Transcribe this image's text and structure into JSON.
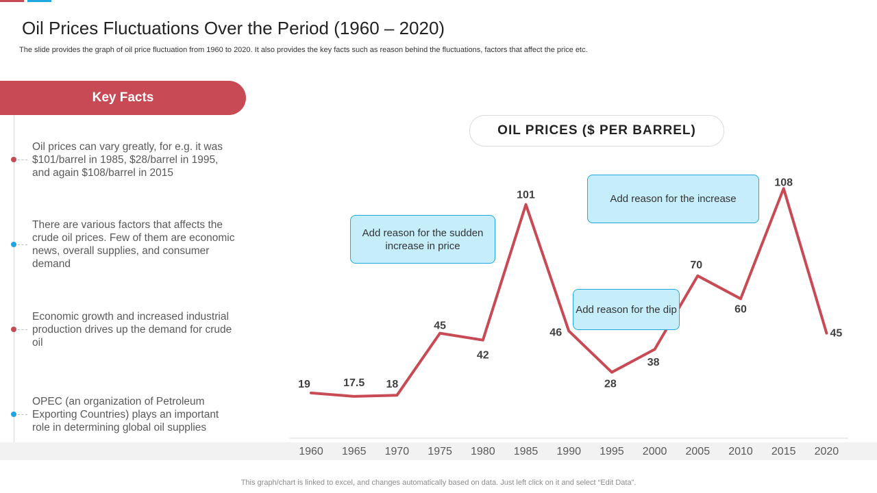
{
  "header": {
    "title": "Oil Prices Fluctuations Over the Period (1960 – 2020)",
    "subtitle": "The slide provides the graph of oil price fluctuation from 1960 to 2020. It also provides the key facts such as reason behind the fluctuations, factors that affect the price etc."
  },
  "key_facts": {
    "heading": "Key Facts",
    "items": [
      {
        "text": "Oil prices can vary greatly, for e.g. it was $101/barrel in 1985, $28/barrel in 1995, and again $108/barrel in 2015",
        "color": "#c84a55"
      },
      {
        "text": "There are various factors that affects the crude oil prices. Few of them are economic news, overall supplies, and consumer demand",
        "color": "#1ea7e1"
      },
      {
        "text": "Economic growth and increased industrial production drives up the demand for crude oil",
        "color": "#c84a55"
      },
      {
        "text": "OPEC (an organization of Petroleum Exporting Countries) plays an important role in determining global oil supplies",
        "color": "#1ea7e1"
      }
    ]
  },
  "chart_data": {
    "type": "line",
    "title": "OIL PRICES ($ PER BARREL)",
    "categories": [
      "1960",
      "1965",
      "1970",
      "1975",
      "1980",
      "1985",
      "1990",
      "1995",
      "2000",
      "2005",
      "2010",
      "2015",
      "2020"
    ],
    "series": [
      {
        "name": "Oil price",
        "values": [
          19,
          17.5,
          18,
          45,
          42,
          101,
          46,
          28,
          38,
          70,
          60,
          108,
          45
        ],
        "color": "#c84a55"
      }
    ],
    "labels": [
      "19",
      "17.5",
      "18",
      "45",
      "42",
      "101",
      "46",
      "28",
      "38",
      "70",
      "60",
      "108",
      "45"
    ],
    "ylim": [
      0,
      108
    ],
    "xlabel": "",
    "ylabel": "",
    "grid": false,
    "annotations": [
      "Add reason for the sudden increase in price",
      "Add reason for the dip",
      "Add reason for the increase"
    ]
  },
  "footer": {
    "note": "This graph/chart is linked to excel, and changes automatically based on data. Just left click on it and select “Edit Data”."
  }
}
